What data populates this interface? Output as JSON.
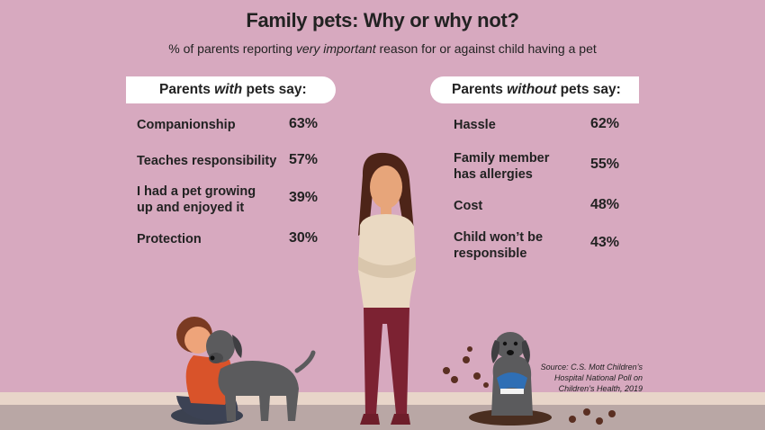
{
  "title": "Family pets: Why or why not?",
  "subtitle_pre": "% of parents reporting ",
  "subtitle_em": "very important",
  "subtitle_post": " reason for or against child having a pet",
  "left_header": {
    "pre": "Parents ",
    "em": "with",
    "post": " pets say:"
  },
  "right_header": {
    "pre": "Parents ",
    "em": "without",
    "post": " pets say:"
  },
  "with_pets": [
    {
      "l1": "Companionship",
      "l2": "",
      "pct": "63%"
    },
    {
      "l1": "Teaches responsibility",
      "l2": "",
      "pct": "57%"
    },
    {
      "l1": "I had a pet growing",
      "l2": "up and enjoyed it",
      "pct": "39%"
    },
    {
      "l1": "Protection",
      "l2": "",
      "pct": "30%"
    }
  ],
  "without_pets": [
    {
      "l1": "Hassle",
      "l2": "",
      "pct": "62%"
    },
    {
      "l1": "Family member",
      "l2": "has allergies",
      "pct": "55%"
    },
    {
      "l1": "Cost",
      "l2": "",
      "pct": "48%"
    },
    {
      "l1": "Child won’t be",
      "l2": "responsible",
      "pct": "43%"
    }
  ],
  "source": {
    "l1": "Source: C.S. Mott Children’s",
    "l2": "Hospital National Poll on",
    "l3": "Children’s Health, 2019"
  },
  "colors": {
    "background": "#d7a9bf",
    "pill": "#ffffff",
    "dog": "#5b5b5d",
    "sweater": "#ead9c2",
    "pants": "#7c2232"
  }
}
